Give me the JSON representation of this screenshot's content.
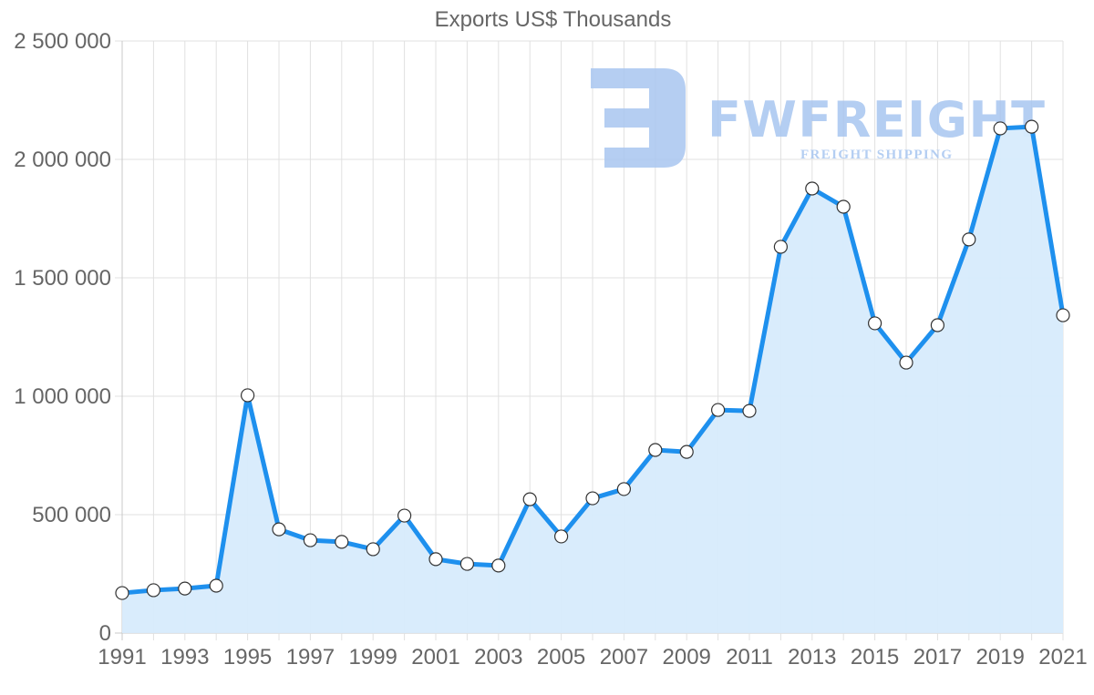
{
  "chart_data": {
    "type": "line",
    "title": "Exports US$ Thousands",
    "xlabel": "",
    "ylabel": "",
    "ylim": [
      0,
      2500000
    ],
    "yticks": [
      0,
      500000,
      1000000,
      1500000,
      2000000,
      2500000
    ],
    "ytick_labels": [
      "0",
      "500 000",
      "1 000 000",
      "1 500 000",
      "2 000 000",
      "2 500 000"
    ],
    "xtick_labels": [
      "1991",
      "1993",
      "1995",
      "1997",
      "1999",
      "2001",
      "2003",
      "2005",
      "2007",
      "2009",
      "2011",
      "2013",
      "2015",
      "2017",
      "2019",
      "2021"
    ],
    "grid": true,
    "fill": true,
    "x": [
      1991,
      1992,
      1993,
      1994,
      1995,
      1996,
      1997,
      1998,
      1999,
      2000,
      2001,
      2002,
      2003,
      2004,
      2005,
      2006,
      2007,
      2008,
      2009,
      2010,
      2011,
      2012,
      2013,
      2014,
      2015,
      2016,
      2017,
      2018,
      2019,
      2020,
      2021
    ],
    "series": [
      {
        "name": "Exports US$ Thousands",
        "values": [
          169000,
          181000,
          188000,
          200000,
          1004000,
          438000,
          392000,
          385000,
          354000,
          496000,
          312000,
          292000,
          285000,
          565000,
          408000,
          569000,
          608000,
          773000,
          765000,
          942000,
          938000,
          1631000,
          1877000,
          1800000,
          1308000,
          1142000,
          1300000,
          1662000,
          2131000,
          2138000,
          1342000
        ]
      }
    ],
    "colors": {
      "line": "#1e90ee",
      "fill": "#d7ebfc",
      "point_fill": "#ffffff",
      "point_stroke": "#333333",
      "grid": "#e0e0e0"
    }
  },
  "watermark": {
    "brand": "FWFREIGHT",
    "tagline": "FREIGHT SHIPPING",
    "color": "#a8c6f0"
  }
}
